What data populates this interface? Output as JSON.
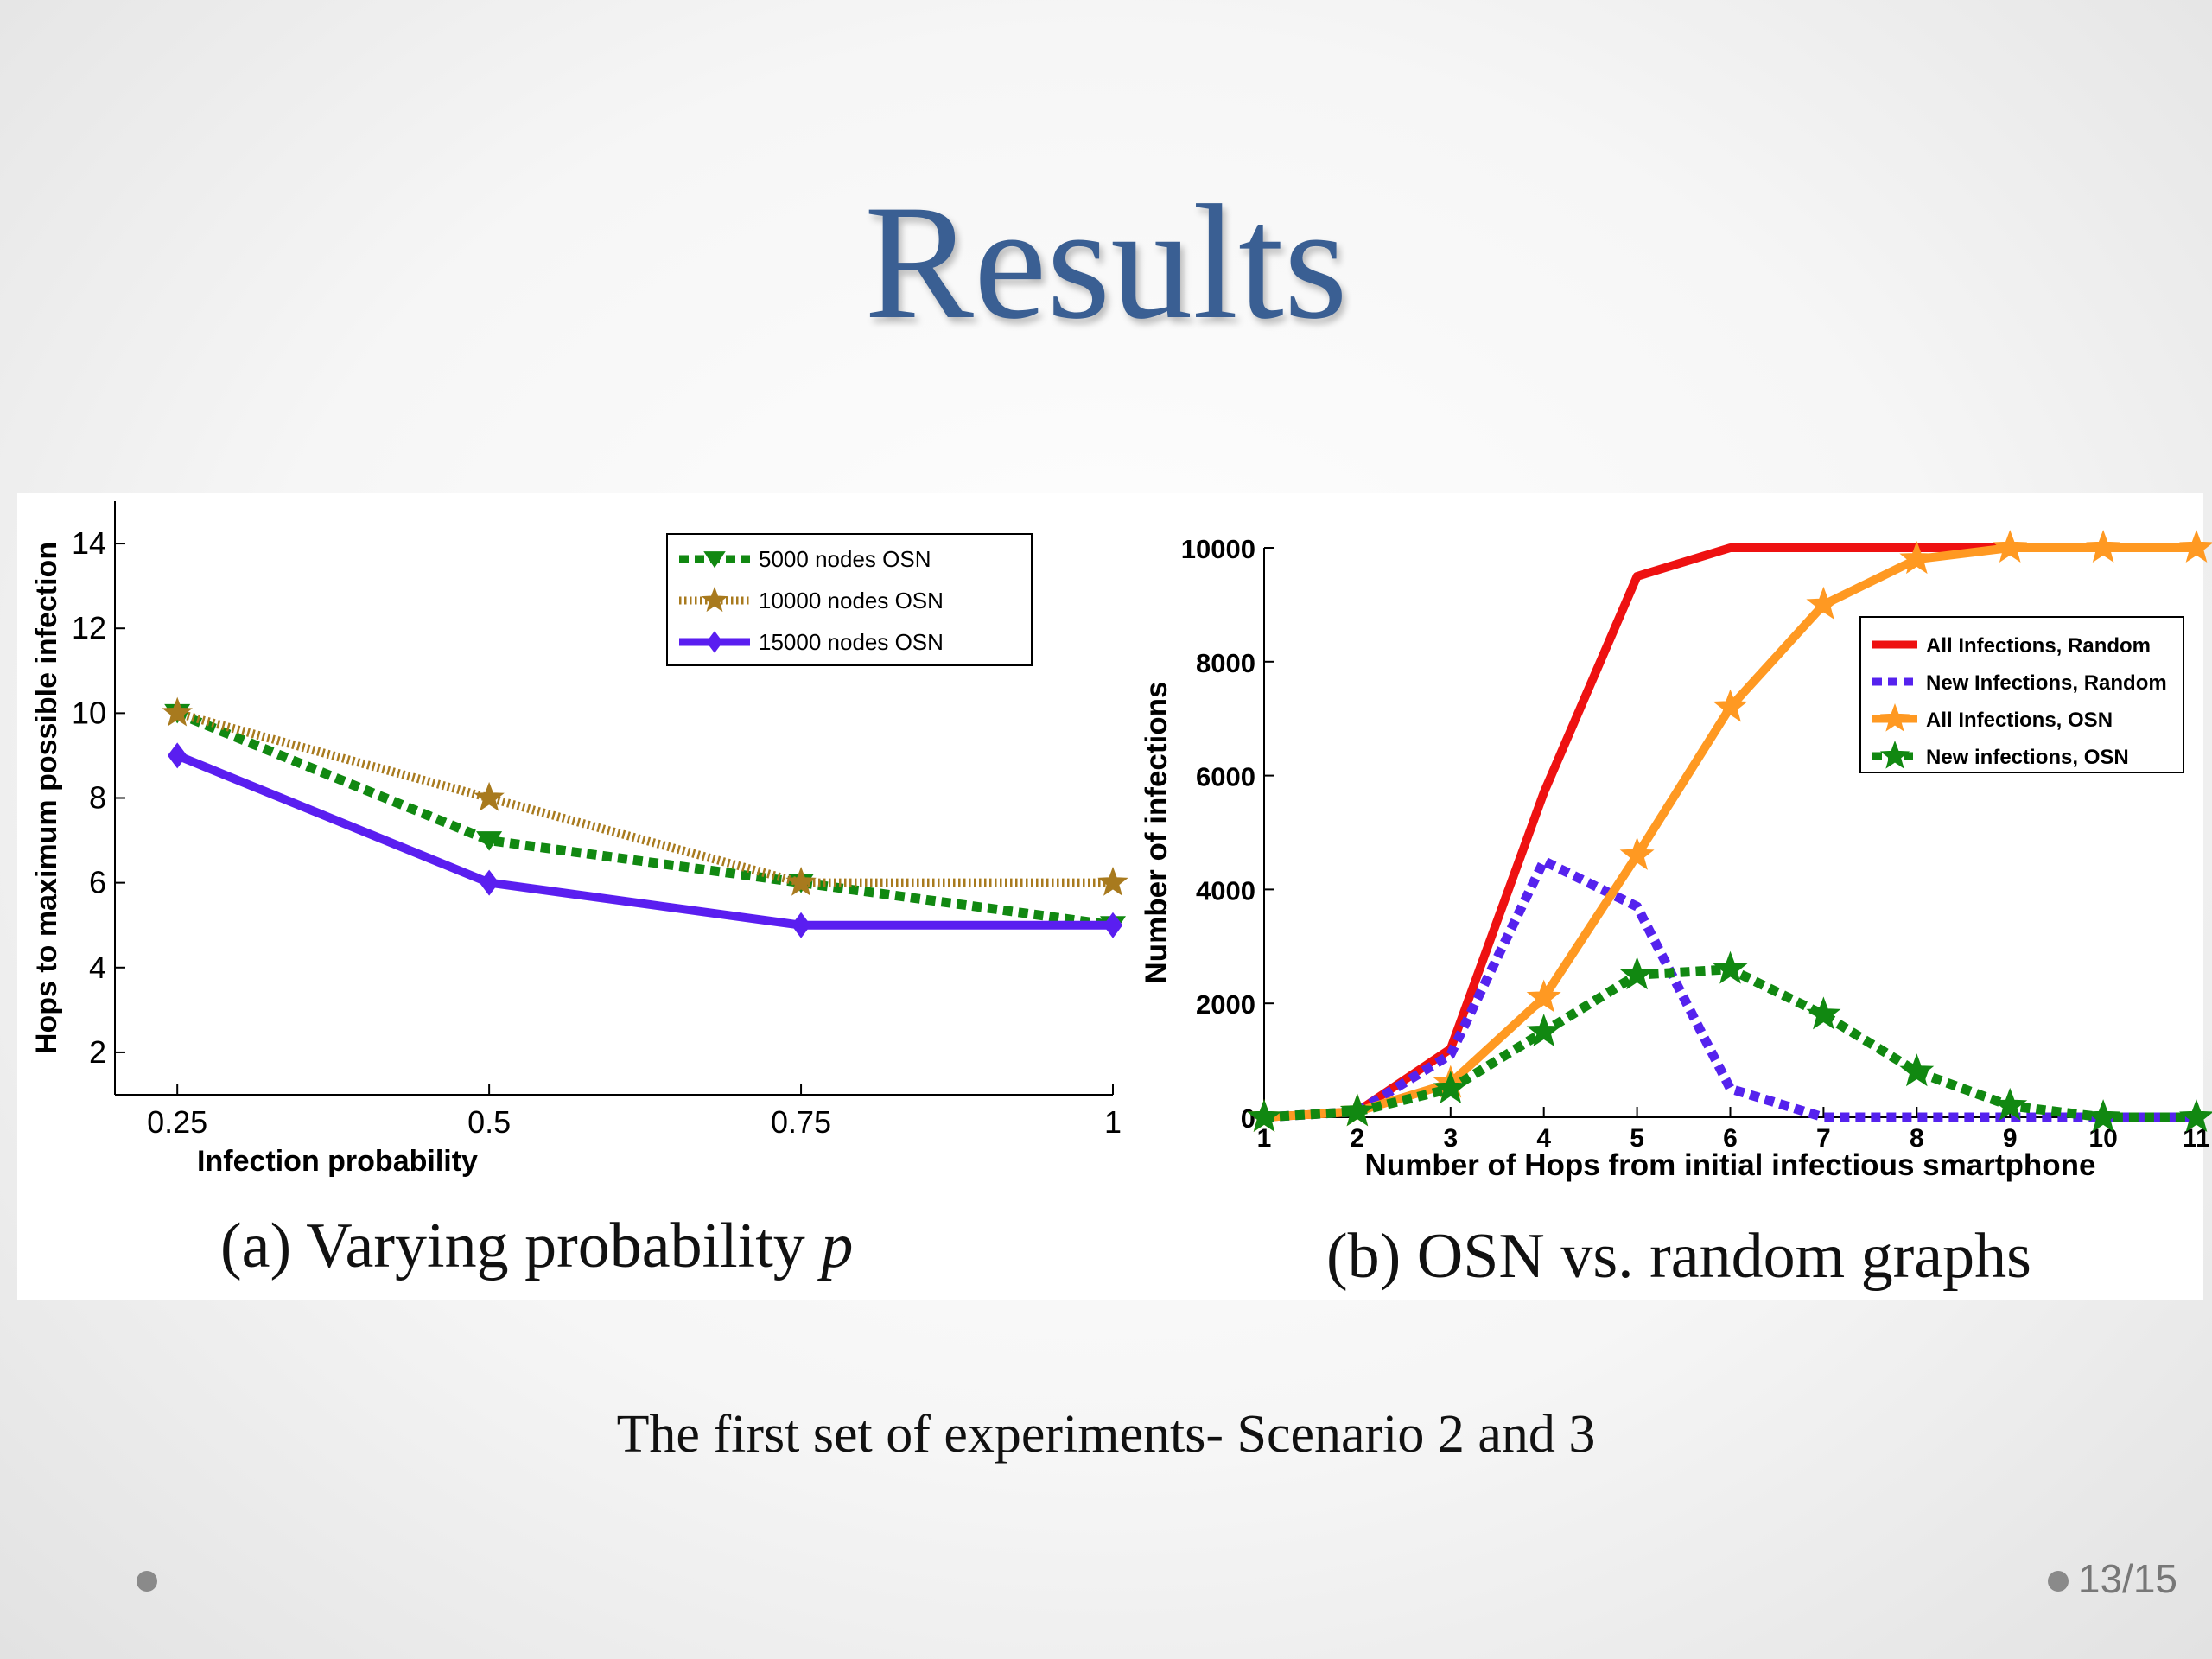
{
  "slide": {
    "title": "Results",
    "subtitle": "The first set of experiments- Scenario 2 and 3",
    "page_number": "13/15"
  },
  "chart_data": [
    {
      "type": "line",
      "caption": "(a) Varying probability",
      "caption_var": "p",
      "xlabel": "Infection probability",
      "ylabel": "Hops to maximum possible infection",
      "xlim": [
        0.2,
        1.0
      ],
      "ylim": [
        1,
        15
      ],
      "x_ticks": [
        0.25,
        0.5,
        0.75,
        1
      ],
      "x_tick_labels": [
        "0.25",
        "0.5",
        "0.75",
        "1"
      ],
      "y_ticks": [
        2,
        4,
        6,
        8,
        10,
        12,
        14
      ],
      "legend_position": "top-right",
      "grid": false,
      "series": [
        {
          "name": "5000 nodes OSN",
          "x": [
            0.25,
            0.5,
            0.75,
            1
          ],
          "values": [
            10,
            7,
            6,
            5
          ],
          "color": "#118811",
          "style": "dotted",
          "marker": "triangle-down"
        },
        {
          "name": "10000 nodes OSN",
          "x": [
            0.25,
            0.5,
            0.75,
            1
          ],
          "values": [
            10,
            8,
            6,
            6
          ],
          "color": "#a87a1e",
          "style": "dotted-light",
          "marker": "star"
        },
        {
          "name": "15000 nodes OSN",
          "x": [
            0.25,
            0.5,
            0.75,
            1
          ],
          "values": [
            9,
            6,
            5,
            5
          ],
          "color": "#5a1ef0",
          "style": "solid",
          "marker": "diamond"
        }
      ]
    },
    {
      "type": "line",
      "caption": "(b) OSN vs. random graphs",
      "xlabel": "Number of Hops from initial infectious smartphone",
      "ylabel": "Number of infections",
      "xlim": [
        1,
        11
      ],
      "ylim": [
        0,
        10000
      ],
      "x_ticks": [
        1,
        2,
        3,
        4,
        5,
        6,
        7,
        8,
        9,
        10,
        11
      ],
      "y_ticks": [
        0,
        2000,
        4000,
        6000,
        8000,
        10000
      ],
      "legend_position": "top-right",
      "grid": false,
      "series": [
        {
          "name": "All Infections, Random",
          "x": [
            1,
            2,
            3,
            4,
            5,
            6,
            7,
            8,
            9,
            10,
            11
          ],
          "values": [
            0,
            100,
            1200,
            5700,
            9500,
            10000,
            10000,
            10000,
            10000,
            10000,
            10000
          ],
          "color": "#ee1111",
          "style": "solid",
          "marker": "none"
        },
        {
          "name": "New Infections, Random",
          "x": [
            1,
            2,
            3,
            4,
            5,
            6,
            7,
            8,
            9,
            10,
            11
          ],
          "values": [
            0,
            100,
            1100,
            4500,
            3700,
            500,
            0,
            0,
            0,
            0,
            0
          ],
          "color": "#5522ee",
          "style": "dotted",
          "marker": "none"
        },
        {
          "name": "All Infections, OSN",
          "x": [
            1,
            2,
            3,
            4,
            5,
            6,
            7,
            8,
            9,
            10,
            11
          ],
          "values": [
            0,
            100,
            600,
            2100,
            4600,
            7200,
            9000,
            9800,
            10000,
            10000,
            10000
          ],
          "color": "#ff9922",
          "style": "solid",
          "marker": "star"
        },
        {
          "name": "New infections, OSN",
          "x": [
            1,
            2,
            3,
            4,
            5,
            6,
            7,
            8,
            9,
            10,
            11
          ],
          "values": [
            0,
            100,
            500,
            1500,
            2500,
            2600,
            1800,
            800,
            200,
            0,
            0
          ],
          "color": "#118811",
          "style": "dotted",
          "marker": "star"
        }
      ]
    }
  ]
}
